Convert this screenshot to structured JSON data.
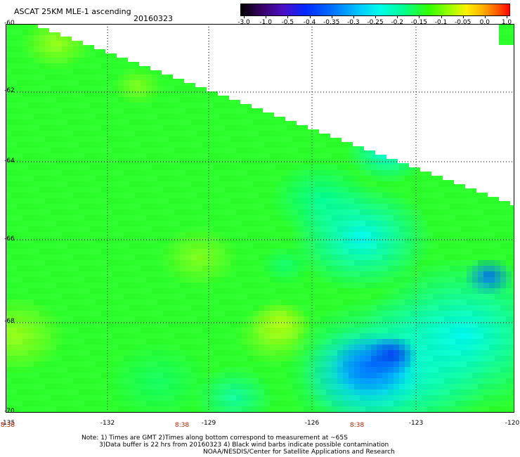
{
  "title": "ASCAT 25KM MLE-1 ascending",
  "date": "20160323",
  "colorbar": {
    "labels": [
      "-3.0",
      "-1.0",
      "-0.5",
      "-0.4",
      "-0.35",
      "-0.3",
      "-0.25",
      "-0.2",
      "-0.15",
      "-0.1",
      "-0.05",
      "0.0",
      "1.0"
    ],
    "colors": [
      "#000000",
      "#3a006a",
      "#4a10c8",
      "#0028ff",
      "#0070ff",
      "#00c8ff",
      "#00ffe6",
      "#00ff96",
      "#32ff00",
      "#a0ff00",
      "#fff000",
      "#ffb000",
      "#ff0000"
    ]
  },
  "axes": {
    "lat_labels": [
      "-60",
      "-62",
      "-64",
      "-66",
      "-68",
      "-70"
    ],
    "lon_labels": [
      "-135",
      "-132",
      "-129",
      "-126",
      "-123",
      "-120"
    ]
  },
  "time_labels": [
    "8:38",
    "8:38",
    "8:38"
  ],
  "notes": [
    "Note: 1) Times are GMT 2)Times along bottom correspond to measurement at ~65S",
    "3)Data buffer is 22 hrs from 20160323 4) Black wind barbs indicate possible contamination",
    "NOAA/NESDIS/Center for Satellite Applications and Research"
  ],
  "map_colors": {
    "green": "#2cff2c",
    "green_yellow": "#a8ff18",
    "yellow": "#f8f800",
    "cyan_green": "#00ff9c",
    "cyan": "#00f8f0",
    "light_blue": "#00c8ff",
    "blue": "#0068ff",
    "dark_blue": "#0030f0"
  }
}
